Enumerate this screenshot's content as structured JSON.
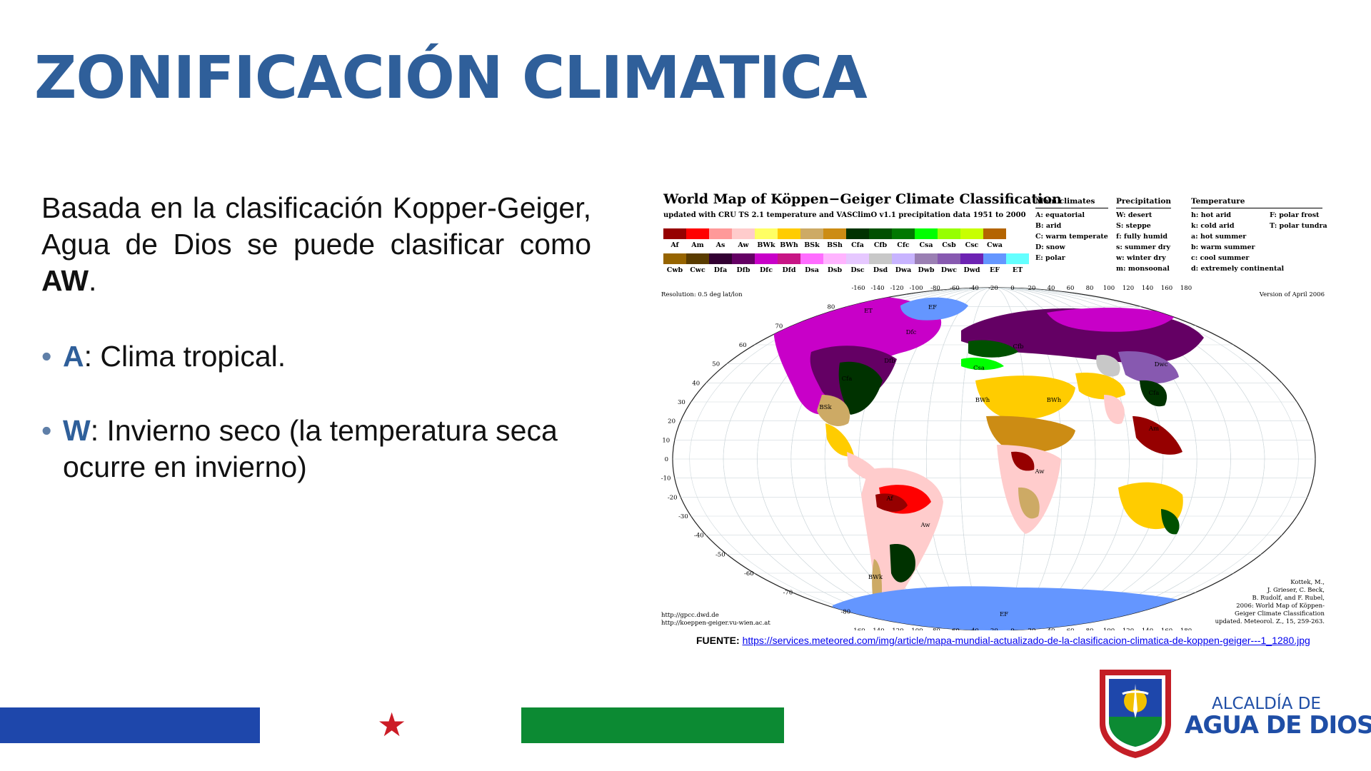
{
  "slide": {
    "title": "ZONIFICACIÓN CLIMATICA",
    "intro_text": "Basada en la clasificación Kopper-Geiger, Agua de Dios se puede clasificar como ",
    "intro_bold": "AW",
    "intro_end": ".",
    "bullets": [
      {
        "key": "A",
        "text": ": Clima tropical."
      },
      {
        "key": "W",
        "text": ": Invierno seco (la temperatura seca ocurre en invierno)"
      }
    ]
  },
  "map": {
    "title": "World Map of Köppen−Geiger Climate Classification",
    "subtitle": "updated with CRU TS 2.1 temperature and VASClimO v1.1 precipitation data 1951 to 2000",
    "resolution": "Resolution: 0.5 deg lat/lon",
    "version": "Version of April 2006",
    "url1": "http://gpcc.dwd.de",
    "url2": "http://koeppen-geiger.vu-wien.ac.at",
    "citation": "Kottek, M.,\nJ. Grieser, C. Beck,\nB. Rudolf, and F. Rubel,\n2006: World Map of Köppen-\nGeiger Climate Classification\nupdated. Meteorol. Z., 15, 259-263.",
    "legend_row1": [
      {
        "code": "Af",
        "color": "#960000"
      },
      {
        "code": "Am",
        "color": "#ff0000"
      },
      {
        "code": "As",
        "color": "#ff9999"
      },
      {
        "code": "Aw",
        "color": "#ffcccc"
      },
      {
        "code": "BWk",
        "color": "#ffff64"
      },
      {
        "code": "BWh",
        "color": "#ffcc00"
      },
      {
        "code": "BSk",
        "color": "#cdaa65"
      },
      {
        "code": "BSh",
        "color": "#cc8c14"
      },
      {
        "code": "Cfa",
        "color": "#003200"
      },
      {
        "code": "Cfb",
        "color": "#005000"
      },
      {
        "code": "Cfc",
        "color": "#007800"
      },
      {
        "code": "Csa",
        "color": "#00ff00"
      },
      {
        "code": "Csb",
        "color": "#96ff00"
      },
      {
        "code": "Csc",
        "color": "#c8ff00"
      },
      {
        "code": "Cwa",
        "color": "#b46400"
      }
    ],
    "legend_row2": [
      {
        "code": "Cwb",
        "color": "#966400"
      },
      {
        "code": "Cwc",
        "color": "#5a3c00"
      },
      {
        "code": "Dfa",
        "color": "#320032"
      },
      {
        "code": "Dfb",
        "color": "#640064"
      },
      {
        "code": "Dfc",
        "color": "#c800c8"
      },
      {
        "code": "Dfd",
        "color": "#c71585"
      },
      {
        "code": "Dsa",
        "color": "#ff6dff"
      },
      {
        "code": "Dsb",
        "color": "#ffb4ff"
      },
      {
        "code": "Dsc",
        "color": "#e6c8ff"
      },
      {
        "code": "Dsd",
        "color": "#c8c8c8"
      },
      {
        "code": "Dwa",
        "color": "#c8b4ff"
      },
      {
        "code": "Dwb",
        "color": "#9a7fb3"
      },
      {
        "code": "Dwc",
        "color": "#8759b0"
      },
      {
        "code": "Dwd",
        "color": "#6d23b3"
      },
      {
        "code": "EF",
        "color": "#6496ff"
      },
      {
        "code": "ET",
        "color": "#64ffff"
      }
    ],
    "key_main": {
      "heading": "Main climates",
      "items": [
        "A: equatorial",
        "B: arid",
        "C: warm temperate",
        "D: snow",
        "E: polar"
      ]
    },
    "key_precip": {
      "heading": "Precipitation",
      "items": [
        "W: desert",
        "S: steppe",
        "f: fully humid",
        "s: summer dry",
        "w: winter dry",
        "m: monsoonal"
      ]
    },
    "key_temp": {
      "heading": "Temperature",
      "items": [
        "h: hot arid",
        "k: cold arid",
        "a: hot summer",
        "b: warm summer",
        "c: cool summer",
        "d: extremely continental"
      ]
    },
    "key_temp2": {
      "items": [
        "F: polar frost",
        "T: polar tundra"
      ]
    },
    "lon_labels": [
      "-160",
      "-140",
      "-120",
      "-100",
      "-80",
      "-60",
      "-40",
      "-20",
      "0",
      "20",
      "40",
      "60",
      "80",
      "100",
      "120",
      "140",
      "160",
      "180"
    ],
    "lat_labels": [
      "80",
      "70",
      "60",
      "50",
      "40",
      "30",
      "20",
      "10",
      "0",
      "-10",
      "-20",
      "-30",
      "-40",
      "-50",
      "-60",
      "-70",
      "-80"
    ],
    "region_labels": [
      "Af",
      "Aw",
      "Aw",
      "BWh",
      "BWh",
      "Cfa",
      "Cfb",
      "Dfb",
      "Dfc",
      "Dwc",
      "ET",
      "EF",
      "EF",
      "BSk",
      "Csa",
      "Cfa",
      "Am",
      "BWk"
    ]
  },
  "source": {
    "label": "FUENTE:",
    "url": "https://services.meteored.com/img/article/mapa-mundial-actualizado-de-la-clasificacion-climatica-de-koppen-geiger---1_1280.jpg"
  },
  "footer": {
    "logo_top": "ALCALDÍA DE",
    "logo_bottom": "AGUA DE DIOS",
    "colors": {
      "blue": "#1e47ab",
      "red": "#cc1c26",
      "green": "#0c8a33"
    }
  }
}
